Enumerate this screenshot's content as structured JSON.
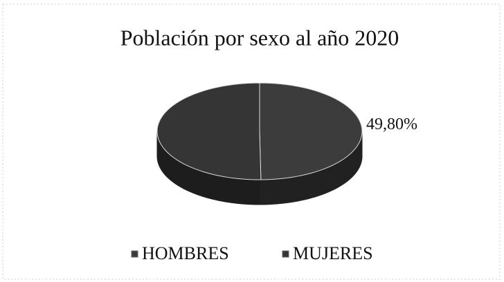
{
  "chart_data": {
    "type": "pie3d",
    "title": "Población por sexo al año 2020",
    "categories": [
      "HOMBRES",
      "MUJERES"
    ],
    "values": [
      49.8,
      50.2
    ],
    "value_labels": [
      "49,80%",
      null
    ],
    "colors": [
      "#3c3c3c",
      "#353535"
    ],
    "legend": "bottom"
  }
}
